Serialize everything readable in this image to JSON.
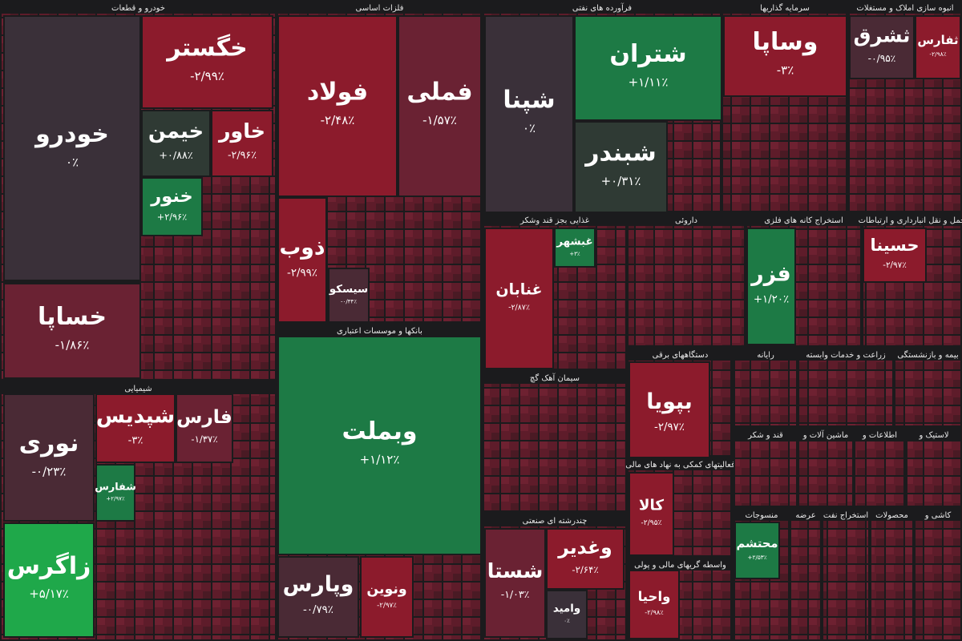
{
  "chart_data": {
    "type": "treemap",
    "groups": [
      {
        "name": "خودرو و قطعات",
        "categories": [
          "خودرو",
          "خساپا",
          "خگستر",
          "خیمن",
          "خاور",
          "خنور"
        ],
        "values": [
          0,
          -1.86,
          -2.99,
          0.88,
          -2.96,
          2.96
        ],
        "value_labels": [
          "۰٪",
          "-۱/۸۶٪",
          "-۲/۹۹٪",
          "+۰/۸۸٪",
          "-۲/۹۶٪",
          "+۲/۹۶٪"
        ]
      },
      {
        "name": "شیمیایی",
        "categories": [
          "نوری",
          "زاگرس",
          "شپدیس",
          "فارس",
          "شفارس"
        ],
        "values": [
          -0.23,
          5.17,
          -3,
          -1.37,
          2.97
        ],
        "value_labels": [
          "-۰/۲۳٪",
          "+۵/۱۷٪",
          "-۳٪",
          "-۱/۳۷٪",
          "+۲/۹۷٪"
        ]
      },
      {
        "name": "فلزات اساسی",
        "categories": [
          "فولاد",
          "فملی",
          "ذوب",
          "سیسکو"
        ],
        "values": [
          -2.48,
          -1.57,
          -2.99,
          -0.34
        ],
        "value_labels": [
          "-۲/۴۸٪",
          "-۱/۵۷٪",
          "-۲/۹۹٪",
          "-۰/۳۴٪"
        ]
      },
      {
        "name": "بانکها و موسسات اعتباری",
        "categories": [
          "وبملت",
          "وپارس",
          "ونوین"
        ],
        "values": [
          1.12,
          -0.79,
          -2.97
        ],
        "value_labels": [
          "+۱/۱۲٪",
          "-۰/۷۹٪",
          "-۲/۹۷٪"
        ]
      },
      {
        "name": "فرآورده های نفتی",
        "categories": [
          "شپنا",
          "شتران",
          "شبندر"
        ],
        "values": [
          0,
          1.11,
          0.31
        ],
        "value_labels": [
          "۰٪",
          "+۱/۱۱٪",
          "+۰/۳۱٪"
        ]
      },
      {
        "name": "سرمایه گذاریها",
        "categories": [
          "وساپا"
        ],
        "values": [
          -3
        ],
        "value_labels": [
          "-۳٪"
        ]
      },
      {
        "name": "انبوه سازی املاک و مستغلات",
        "categories": [
          "ثشرق",
          "ثفارس"
        ],
        "values": [
          -0.95,
          -2.98
        ],
        "value_labels": [
          "-۰/۹۵٪",
          "-۲/۹۸٪"
        ]
      },
      {
        "name": "غذایی بجز قند وشکر",
        "categories": [
          "غنابان",
          "غبشهر"
        ],
        "values": [
          -2.87,
          3
        ],
        "value_labels": [
          "-۲/۸۷٪",
          "+۳٪"
        ]
      },
      {
        "name": "داروئی"
      },
      {
        "name": "استخراج کانه های فلزی",
        "categories": [
          "فزر"
        ],
        "values": [
          1.2
        ],
        "value_labels": [
          "+۱/۲۰٪"
        ]
      },
      {
        "name": "حمل و نقل انبارداری و ارتباطات",
        "categories": [
          "حسینا"
        ],
        "values": [
          -2.97
        ],
        "value_labels": [
          "-۲/۹۷٪"
        ]
      },
      {
        "name": "دستگاههای برقی",
        "categories": [
          "بپویا"
        ],
        "values": [
          -2.97
        ],
        "value_labels": [
          "-۲/۹۷٪"
        ]
      },
      {
        "name": "سیمان آهک گچ"
      },
      {
        "name": "فعالیتهای کمکی به نهاد های مالی",
        "categories": [
          "کالا"
        ],
        "values": [
          -2.95
        ],
        "value_labels": [
          "-۲/۹۵٪"
        ]
      },
      {
        "name": "چندرشته ای صنعتی",
        "categories": [
          "شستا",
          "وغدیر",
          "وامید"
        ],
        "values": [
          -1.03,
          -2.64,
          0
        ],
        "value_labels": [
          "-۱/۰۳٪",
          "-۲/۶۴٪",
          "۰٪"
        ]
      },
      {
        "name": "واسطه گریهای مالی و پولی",
        "categories": [
          "واحیا"
        ],
        "values": [
          -2.98
        ],
        "value_labels": [
          "-۲/۹۸٪"
        ]
      },
      {
        "name": "رایانه"
      },
      {
        "name": "زراعت و خدمات وابسته"
      },
      {
        "name": "بیمه و بازنشستگی"
      },
      {
        "name": "قند و شکر"
      },
      {
        "name": "ماشین آلات و"
      },
      {
        "name": "اطلاعات و"
      },
      {
        "name": "لاستیک و"
      },
      {
        "name": "منسوجات",
        "categories": [
          "محتشم"
        ],
        "values": [
          2.53
        ],
        "value_labels": [
          "+۲/۵۳٪"
        ]
      },
      {
        "name": "عرضه"
      },
      {
        "name": "استخراج نفت"
      },
      {
        "name": "محصولات"
      },
      {
        "name": "کاشی و"
      }
    ]
  }
}
